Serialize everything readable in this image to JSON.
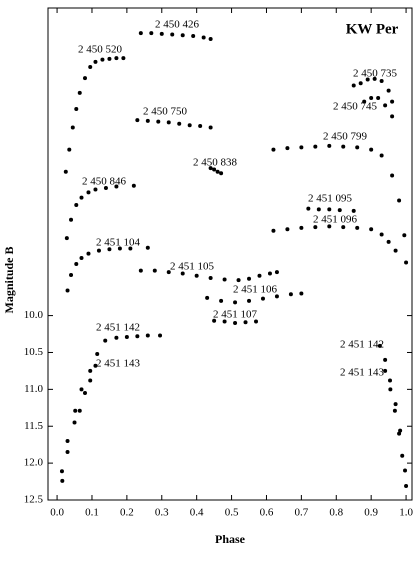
{
  "chart_data": {
    "type": "scatter",
    "title": "KW Per",
    "x_label": "Phase",
    "y_label": "Magnitude B",
    "xlim": [
      -0.026,
      1.017
    ],
    "ylim": [
      12.5,
      5.83
    ],
    "color": "#000000",
    "xticks": [
      {
        "value": 0,
        "label": "0.0"
      },
      0.1,
      0.2,
      0.3,
      0.4,
      0.5,
      0.6,
      0.7,
      0.8,
      0.9,
      {
        "value": 1,
        "label": "1.0"
      }
    ],
    "yticks": [
      {
        "value": 10,
        "label": "10.0"
      },
      10.5,
      {
        "value": 11,
        "label": "11.0"
      },
      11.5,
      {
        "value": 12,
        "label": "12.0"
      },
      12.5
    ],
    "series": [
      {
        "name": "2 450 426",
        "x": [
          0.24,
          0.27,
          0.3,
          0.33,
          0.36,
          0.39,
          0.42,
          0.44
        ],
        "values": [
          6.17,
          6.17,
          6.18,
          6.19,
          6.2,
          6.21,
          6.23,
          6.25
        ]
      },
      {
        "name": "2 450 520",
        "x": [
          0.025,
          0.035,
          0.045,
          0.055,
          0.065,
          0.08,
          0.095,
          0.11,
          0.13,
          0.15,
          0.17,
          0.19
        ],
        "values": [
          8.05,
          7.75,
          7.45,
          7.2,
          6.98,
          6.78,
          6.63,
          6.56,
          6.53,
          6.52,
          6.51,
          6.51
        ]
      },
      {
        "name": "2 450 750",
        "x": [
          0.23,
          0.26,
          0.29,
          0.32,
          0.35,
          0.38,
          0.41,
          0.44
        ],
        "values": [
          7.35,
          7.36,
          7.37,
          7.38,
          7.4,
          7.42,
          7.43,
          7.45
        ]
      },
      {
        "name": "2 450 838",
        "x": [
          0.44,
          0.45,
          0.46,
          0.47
        ],
        "values": [
          8.0,
          8.02,
          8.05,
          8.07
        ]
      },
      {
        "name": "2 450 735",
        "x": [
          0.85,
          0.87,
          0.89,
          0.91,
          0.93,
          0.95,
          0.96
        ],
        "values": [
          6.88,
          6.85,
          6.8,
          6.79,
          6.82,
          6.95,
          7.1
        ]
      },
      {
        "name": "2 450 745",
        "x": [
          0.88,
          0.9,
          0.92,
          0.94,
          0.96
        ],
        "values": [
          7.1,
          7.05,
          7.05,
          7.15,
          7.3
        ]
      },
      {
        "name": "2 450 799",
        "x": [
          0.62,
          0.66,
          0.7,
          0.74,
          0.78,
          0.82,
          0.86,
          0.9,
          0.93,
          0.96,
          0.98,
          0.995,
          1.0
        ],
        "values": [
          7.75,
          7.73,
          7.72,
          7.71,
          7.7,
          7.71,
          7.72,
          7.75,
          7.83,
          8.1,
          8.44,
          8.91,
          9.28
        ]
      },
      {
        "name": "2 450 846",
        "x": [
          0.028,
          0.04,
          0.055,
          0.07,
          0.09,
          0.11,
          0.14,
          0.17,
          0.22
        ],
        "values": [
          8.95,
          8.7,
          8.5,
          8.4,
          8.33,
          8.29,
          8.27,
          8.25,
          8.24
        ]
      },
      {
        "name": "2 451 095",
        "x": [
          0.72,
          0.75,
          0.78,
          0.81,
          0.85
        ],
        "values": [
          8.55,
          8.56,
          8.56,
          8.57,
          8.58
        ]
      },
      {
        "name": "2 451 096",
        "x": [
          0.62,
          0.66,
          0.7,
          0.74,
          0.78,
          0.82,
          0.86,
          0.9,
          0.93,
          0.95,
          0.97
        ],
        "values": [
          8.85,
          8.83,
          8.81,
          8.8,
          8.79,
          8.8,
          8.81,
          8.83,
          8.9,
          9.0,
          9.12
        ]
      },
      {
        "name": "2 451 104",
        "x": [
          0.03,
          0.04,
          0.055,
          0.07,
          0.09,
          0.12,
          0.15,
          0.18,
          0.21,
          0.26
        ],
        "values": [
          9.66,
          9.45,
          9.3,
          9.22,
          9.16,
          9.12,
          9.1,
          9.09,
          9.09,
          9.08
        ]
      },
      {
        "name": "2 451 105",
        "x": [
          0.24,
          0.28,
          0.32,
          0.36,
          0.4,
          0.44,
          0.48,
          0.52,
          0.55,
          0.58,
          0.61,
          0.63
        ],
        "values": [
          9.39,
          9.39,
          9.41,
          9.43,
          9.46,
          9.49,
          9.51,
          9.52,
          9.5,
          9.46,
          9.43,
          9.41
        ]
      },
      {
        "name": "2 451 106",
        "x": [
          0.43,
          0.47,
          0.51,
          0.55,
          0.59,
          0.63,
          0.67,
          0.7
        ],
        "values": [
          9.76,
          9.8,
          9.82,
          9.8,
          9.77,
          9.74,
          9.71,
          9.7
        ]
      },
      {
        "name": "2 451 107",
        "x": [
          0.45,
          0.48,
          0.51,
          0.54,
          0.57
        ],
        "values": [
          10.07,
          10.08,
          10.1,
          10.09,
          10.08
        ]
      },
      {
        "name": "2 451 142",
        "x": [
          0.014,
          0.03,
          0.052,
          0.07,
          0.095,
          0.115,
          0.138,
          0.17,
          0.2,
          0.23,
          0.26,
          0.295,
          0.925,
          0.94,
          0.954,
          0.97,
          0.983,
          0.997
        ],
        "values": [
          12.11,
          11.7,
          11.29,
          11.0,
          10.75,
          10.52,
          10.34,
          10.3,
          10.29,
          10.28,
          10.27,
          10.27,
          10.41,
          10.6,
          10.88,
          11.2,
          11.56,
          12.1
        ]
      },
      {
        "name": "2 451 143",
        "x": [
          0.015,
          0.03,
          0.05,
          0.065,
          0.08,
          0.095,
          0.11,
          0.94,
          0.955,
          0.968,
          0.98,
          0.989,
          1.0
        ],
        "values": [
          12.24,
          11.85,
          11.45,
          11.29,
          11.05,
          10.88,
          10.68,
          10.75,
          11.0,
          11.29,
          11.6,
          11.9,
          12.31
        ]
      }
    ]
  }
}
